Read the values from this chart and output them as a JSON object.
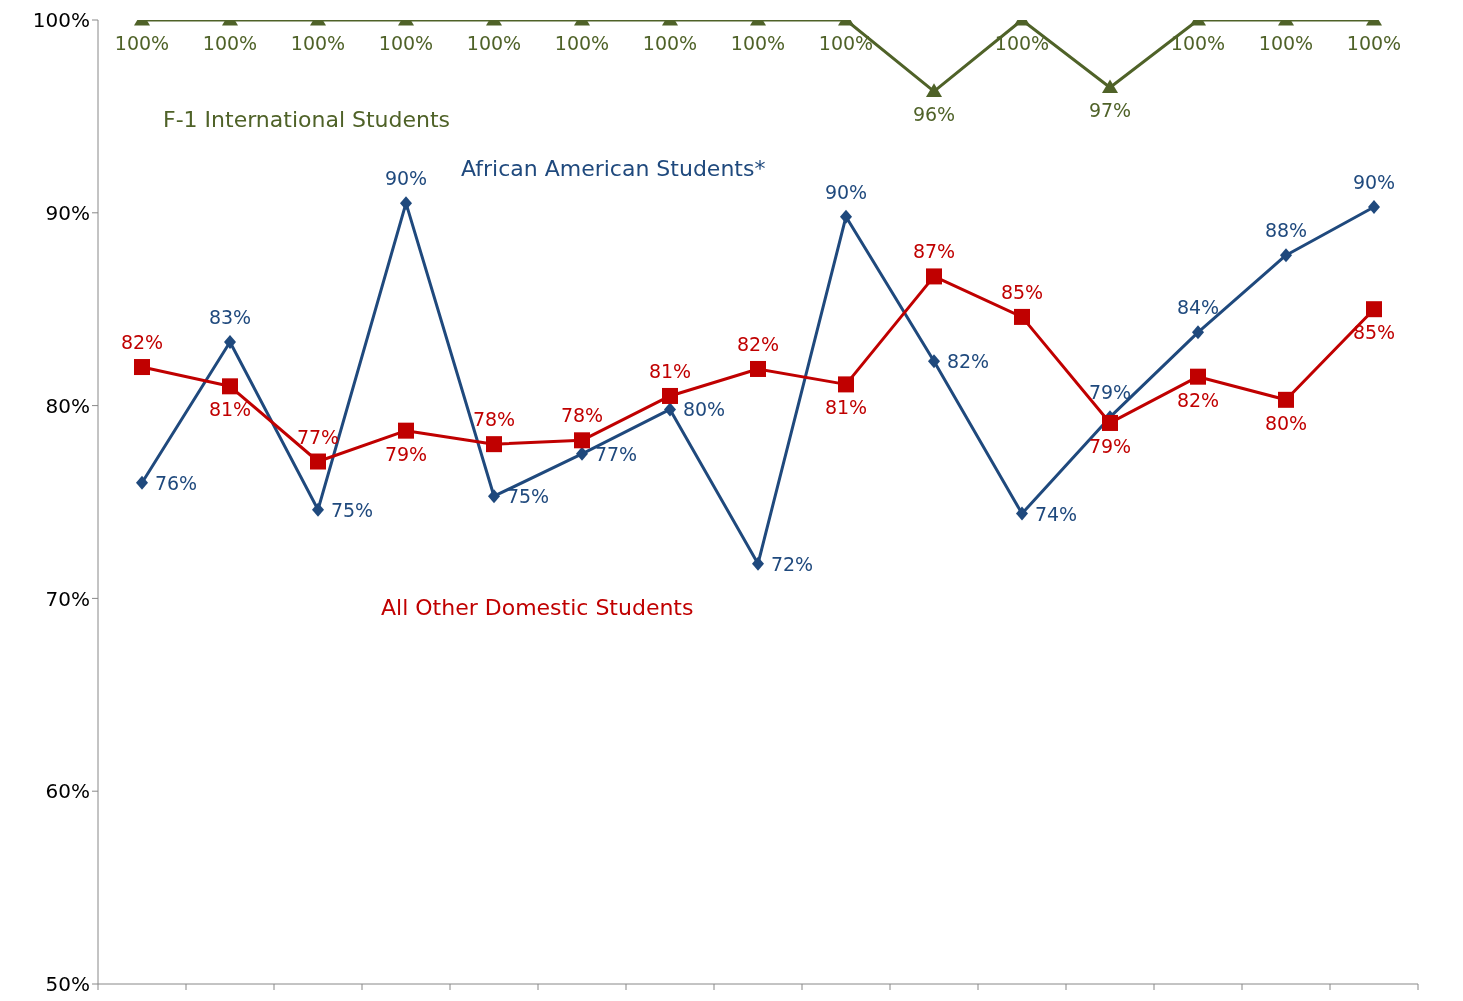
{
  "chart_data": {
    "type": "line",
    "categories": [
      null,
      null,
      null,
      null,
      null,
      null,
      null,
      null,
      null,
      null,
      null,
      null,
      null,
      null,
      null
    ],
    "ylim": [
      50,
      100
    ],
    "yticks": [
      {
        "value": 50,
        "label": "50%"
      },
      {
        "value": 60,
        "label": "60%"
      },
      {
        "value": 70,
        "label": "70%"
      },
      {
        "value": 80,
        "label": "80%"
      },
      {
        "value": 90,
        "label": "90%"
      },
      {
        "value": 100,
        "label": "100%"
      }
    ],
    "grid": false,
    "legend": false,
    "line_style": "solid",
    "series": [
      {
        "name": "F-1 International Students",
        "color": "#4f6228",
        "marker": "triangle",
        "values": [
          100,
          100,
          100,
          100,
          100,
          100,
          100,
          100,
          100,
          96.3,
          100,
          96.5,
          100,
          100,
          100
        ],
        "value_labels": [
          "100%",
          "100%",
          "100%",
          "100%",
          "100%",
          "100%",
          "100%",
          "100%",
          "100%",
          "96%",
          "100%",
          "97%",
          "100%",
          "100%",
          "100%"
        ]
      },
      {
        "name": "African American Students*",
        "color": "#1f497d",
        "marker": "diamond",
        "values": [
          76.0,
          83.3,
          74.6,
          90.5,
          75.3,
          77.5,
          79.8,
          71.8,
          89.8,
          82.3,
          74.4,
          79.4,
          83.8,
          87.8,
          90.3
        ],
        "value_labels": [
          "76%",
          "83%",
          "75%",
          "90%",
          "75%",
          "77%",
          "80%",
          "72%",
          "90%",
          "82%",
          "74%",
          "79%",
          "84%",
          "88%",
          "90%"
        ]
      },
      {
        "name": "All Other Domestic Students",
        "color": "#c00000",
        "marker": "square",
        "values": [
          82.0,
          81.0,
          77.1,
          78.7,
          78.0,
          78.2,
          80.5,
          81.9,
          81.1,
          86.7,
          84.6,
          79.1,
          81.5,
          80.3,
          85.0
        ],
        "value_labels": [
          "82%",
          "81%",
          "77%",
          "79%",
          "78%",
          "78%",
          "81%",
          "82%",
          "81%",
          "87%",
          "85%",
          "79%",
          "82%",
          "80%",
          "85%"
        ]
      }
    ]
  }
}
